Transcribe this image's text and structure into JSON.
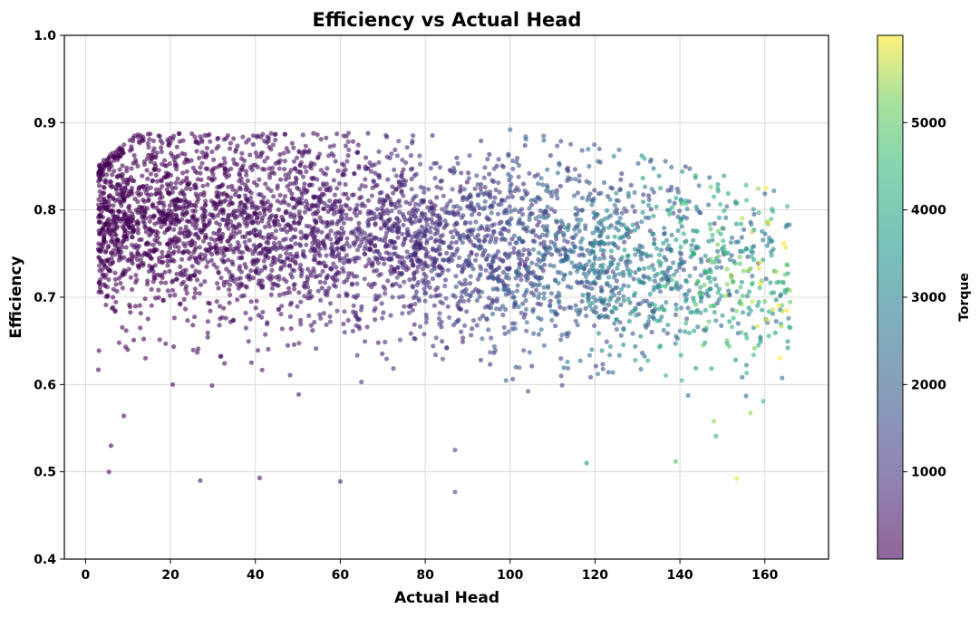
{
  "chart_data": {
    "type": "scatter",
    "title": "Efficiency vs Actual Head",
    "xlabel": "Actual Head",
    "ylabel": "Efficiency",
    "xlim": [
      -5,
      175
    ],
    "ylim": [
      0.4,
      1.0
    ],
    "x_ticks": [
      0,
      20,
      40,
      60,
      80,
      100,
      120,
      140,
      160
    ],
    "y_ticks": [
      0.4,
      0.5,
      0.6,
      0.7,
      0.8,
      0.9,
      1.0
    ],
    "grid": true,
    "colormap": "viridis",
    "marker_alpha": 0.6,
    "colorbar": {
      "label": "Torque",
      "range": [
        0,
        6000
      ],
      "ticks": [
        1000,
        2000,
        3000,
        4000,
        5000
      ],
      "position": "right"
    },
    "point_count_approx": 4500,
    "sample_points": [
      {
        "x": 5.5,
        "y": 0.5,
        "torque": 50
      },
      {
        "x": 6,
        "y": 0.53,
        "torque": 60
      },
      {
        "x": 3,
        "y": 0.617,
        "torque": 40
      },
      {
        "x": 9,
        "y": 0.564,
        "torque": 100
      },
      {
        "x": 27,
        "y": 0.49,
        "torque": 300
      },
      {
        "x": 41,
        "y": 0.493,
        "torque": 400
      },
      {
        "x": 60,
        "y": 0.489,
        "torque": 600
      },
      {
        "x": 87,
        "y": 0.477,
        "torque": 1500
      },
      {
        "x": 87,
        "y": 0.525,
        "torque": 1400
      },
      {
        "x": 100,
        "y": 0.892,
        "torque": 2200
      },
      {
        "x": 118,
        "y": 0.51,
        "torque": 3500
      },
      {
        "x": 139,
        "y": 0.512,
        "torque": 4800
      },
      {
        "x": 152,
        "y": 0.726,
        "torque": 5700
      },
      {
        "x": 155,
        "y": 0.73,
        "torque": 5300
      },
      {
        "x": 166,
        "y": 0.665,
        "torque": 4200
      },
      {
        "x": 162,
        "y": 0.755,
        "torque": 3200
      },
      {
        "x": 148,
        "y": 0.815,
        "torque": 4300
      },
      {
        "x": 148,
        "y": 0.558,
        "torque": 5400
      }
    ]
  }
}
